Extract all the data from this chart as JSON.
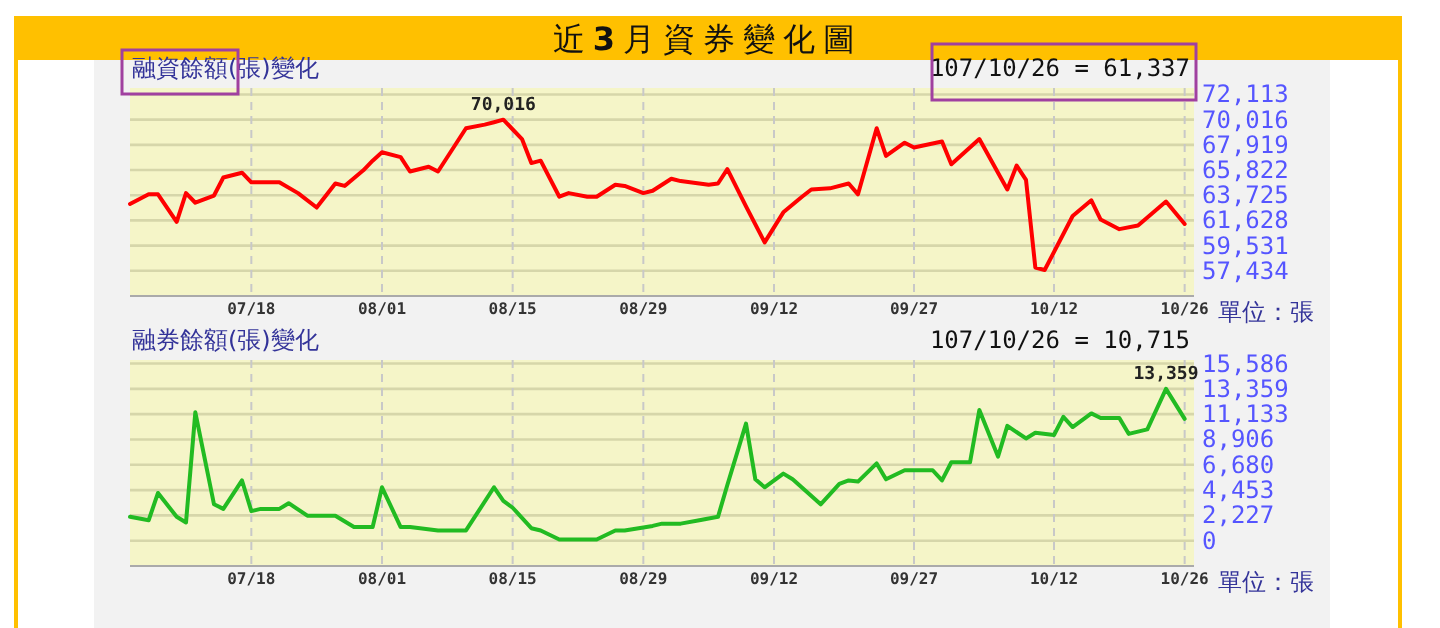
{
  "chart_data": [
    {
      "type": "line",
      "title": "近**3**月資券變化圖",
      "subtitle": "融資餘額(張)變化",
      "color": "#ff0000",
      "grid": true,
      "x": [
        "--07-05",
        "--07-07",
        "--07-08",
        "--07-10",
        "--07-11",
        "--07-12",
        "--07-14",
        "--07-15",
        "--07-17",
        "--07-18",
        "--07-21",
        "--07-23",
        "--07-25",
        "--07-27",
        "--07-28",
        "--07-30",
        "--07-31",
        "--08-01",
        "--08-03",
        "--08-04",
        "--08-06",
        "--08-07",
        "--08-10",
        "--08-12",
        "--08-13",
        "--08-14",
        "--08-16",
        "--08-17",
        "--08-18",
        "--08-20",
        "--08-21",
        "--08-23",
        "--08-24",
        "--08-26",
        "--08-27",
        "--08-29",
        "--08-30",
        "--09-01",
        "--09-02",
        "--09-05",
        "--09-06",
        "--09-07",
        "--09-09",
        "--09-11",
        "--09-13",
        "--09-15",
        "--09-16",
        "--09-18",
        "--09-20",
        "--09-21",
        "--09-23",
        "--09-24",
        "--09-26",
        "--09-27",
        "--09-30",
        "--10-01",
        "--10-04",
        "--10-06",
        "--10-07",
        "--10-08",
        "--10-09",
        "--10-10",
        "--10-11",
        "--10-14",
        "--10-16",
        "--10-17",
        "--10-19",
        "--10-21",
        "--10-24",
        "--10-26"
      ],
      "values": [
        63000,
        63800,
        63800,
        61500,
        63900,
        63100,
        63700,
        65200,
        65600,
        64800,
        64800,
        63900,
        62700,
        64700,
        64500,
        65800,
        66600,
        67300,
        66900,
        65700,
        66100,
        65700,
        69300,
        69600,
        69800,
        70016,
        68400,
        66400,
        66600,
        63600,
        63900,
        63600,
        63600,
        64600,
        64500,
        63900,
        64100,
        65100,
        64900,
        64600,
        64700,
        65900,
        62800,
        59800,
        62300,
        63600,
        64200,
        64300,
        64700,
        63800,
        69300,
        67000,
        68100,
        67700,
        68200,
        66300,
        68400,
        65600,
        64200,
        66200,
        65000,
        57700,
        57500,
        62000,
        63300,
        61700,
        60900,
        61200,
        63200,
        61337
      ],
      "xlim": [
        "--07-05",
        "--10-27"
      ],
      "xticks": [
        {
          "value": "--07-18",
          "label": "07/18"
        },
        {
          "value": "--08-01",
          "label": "08/01"
        },
        {
          "value": "--08-15",
          "label": "08/15"
        },
        {
          "value": "--08-29",
          "label": "08/29"
        },
        {
          "value": "--09-12",
          "label": "09/12"
        },
        {
          "value": "--09-27",
          "label": "09/27"
        },
        {
          "value": "--10-12",
          "label": "10/12"
        },
        {
          "value": "--10-26",
          "label": "10/26"
        }
      ],
      "ylim": [
        55337,
        72650
      ],
      "yticks": [
        {
          "value": 57434,
          "label": "57,434"
        },
        {
          "value": 59531,
          "label": "59,531"
        },
        {
          "value": 61628,
          "label": "61,628"
        },
        {
          "value": 63725,
          "label": "63,725"
        },
        {
          "value": 65822,
          "label": "65,822"
        },
        {
          "value": 67919,
          "label": "67,919"
        },
        {
          "value": 70016,
          "label": "70,016"
        },
        {
          "value": 72113,
          "label": "72,113"
        }
      ],
      "annotations": [
        "107/10/26 = 61,337",
        "單位：張",
        {
          "text": "70,016",
          "x": "--08-14",
          "y": 70016
        }
      ]
    },
    {
      "type": "line",
      "title": "融券餘額(張)變化",
      "color": "#22bb22",
      "grid": true,
      "x": [
        "--07-05",
        "--07-07",
        "--07-08",
        "--07-10",
        "--07-11",
        "--07-12",
        "--07-14",
        "--07-15",
        "--07-17",
        "--07-18",
        "--07-19",
        "--07-21",
        "--07-22",
        "--07-24",
        "--07-27",
        "--07-29",
        "--07-31",
        "--08-01",
        "--08-03",
        "--08-04",
        "--08-07",
        "--08-10",
        "--08-13",
        "--08-14",
        "--08-15",
        "--08-17",
        "--08-18",
        "--08-20",
        "--08-24",
        "--08-26",
        "--08-27",
        "--08-30",
        "--08-31",
        "--09-02",
        "--09-04",
        "--09-06",
        "--09-07",
        "--09-09",
        "--09-10",
        "--09-11",
        "--09-13",
        "--09-14",
        "--09-17",
        "--09-19",
        "--09-20",
        "--09-21",
        "--09-23",
        "--09-24",
        "--09-26",
        "--09-29",
        "--09-30",
        "--10-01",
        "--10-03",
        "--10-04",
        "--10-06",
        "--10-07",
        "--10-09",
        "--10-10",
        "--10-12",
        "--10-13",
        "--10-14",
        "--10-16",
        "--10-17",
        "--10-19",
        "--10-20",
        "--10-22",
        "--10-24",
        "--10-26"
      ],
      "values": [
        2100,
        1800,
        4200,
        2100,
        1600,
        11300,
        3200,
        2800,
        5300,
        2600,
        2800,
        2800,
        3300,
        2200,
        2200,
        1200,
        1200,
        4700,
        1200,
        1200,
        900,
        900,
        4700,
        3500,
        2900,
        1100,
        900,
        100,
        100,
        900,
        900,
        1300,
        1500,
        1500,
        1800,
        2100,
        4900,
        10300,
        5400,
        4700,
        5900,
        5400,
        3200,
        5000,
        5300,
        5200,
        6800,
        5400,
        6200,
        6200,
        5300,
        6900,
        6900,
        11500,
        7400,
        10100,
        9000,
        9500,
        9300,
        10900,
        10000,
        11200,
        10800,
        10800,
        9400,
        9800,
        13359,
        10715
      ],
      "xlim": [
        "--07-05",
        "--10-27"
      ],
      "xticks": [
        {
          "value": "--07-18",
          "label": "07/18"
        },
        {
          "value": "--08-01",
          "label": "08/01"
        },
        {
          "value": "--08-15",
          "label": "08/15"
        },
        {
          "value": "--08-29",
          "label": "08/29"
        },
        {
          "value": "--09-12",
          "label": "09/12"
        },
        {
          "value": "--09-27",
          "label": "09/27"
        },
        {
          "value": "--10-12",
          "label": "10/12"
        },
        {
          "value": "--10-26",
          "label": "10/26"
        }
      ],
      "ylim": [
        -2227,
        15900
      ],
      "yticks": [
        0,
        {
          "value": 2227,
          "label": "2,227"
        },
        {
          "value": 4453,
          "label": "4,453"
        },
        {
          "value": 6680,
          "label": "6,680"
        },
        {
          "value": 8906,
          "label": "8,906"
        },
        {
          "value": 11133,
          "label": "11,133"
        },
        {
          "value": 13359,
          "label": "13,359"
        },
        {
          "value": 15586,
          "label": "15,586"
        }
      ],
      "annotations": [
        "107/10/26 = 10,715",
        "單位：張",
        {
          "text": "13,359",
          "x": "--10-24",
          "y": 13359
        }
      ]
    }
  ]
}
